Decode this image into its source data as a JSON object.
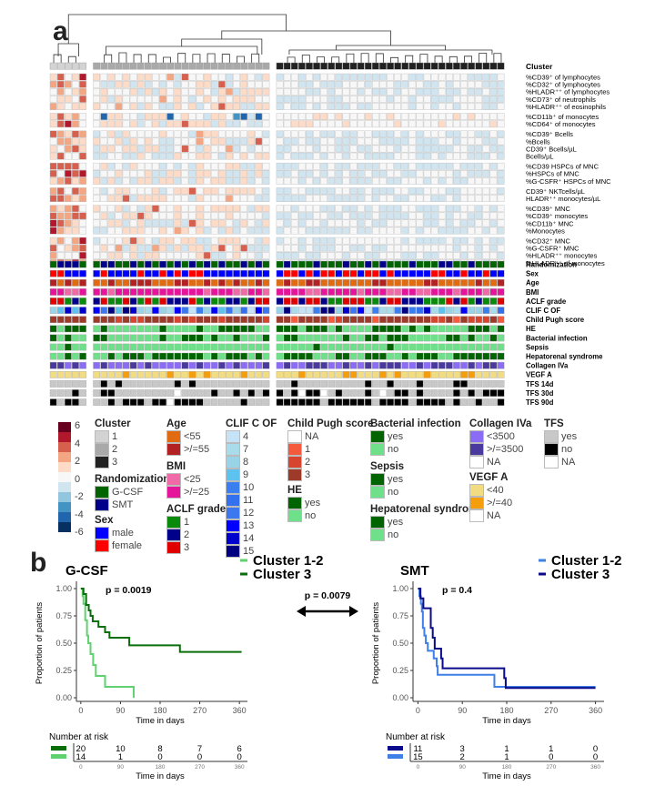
{
  "panel_a": {
    "letter": "a",
    "cluster_label": "Cluster",
    "clusters": [
      {
        "id": 1,
        "n_columns": 5,
        "color": "#d3d3d3"
      },
      {
        "id": 2,
        "n_columns": 24,
        "color": "#a9a9a9"
      },
      {
        "id": 3,
        "n_columns": 31,
        "color": "#222222"
      }
    ],
    "row_groups": [
      [
        "%CD39⁺ of lymphocytes",
        "%CD32⁺ of lymphocytes",
        "%HLADR⁺⁺ of lymphocytes",
        "%CD73⁺ of neutrophils",
        "%HLADR⁺⁺ of eosinophils"
      ],
      [
        "%CD11b⁺ of monocytes",
        "%CD64⁺ of monocytes"
      ],
      [
        "%CD39⁺ Bcells",
        "%Bcells",
        "CD39⁺ Bcells/µL",
        "Bcells/µL"
      ],
      [
        "%CD39 HSPCs of MNC",
        "%HSPCs of MNC",
        "%G-CSFR⁺ HSPCs of MNC"
      ],
      [
        "CD39⁺ NKTcells/µL",
        "HLADR⁺⁺ monocytes/µL"
      ],
      [
        "%CD39⁺ MNC",
        "%CD39⁺ monocytes",
        "%CD11b⁺ MNC",
        "%Monocytes"
      ],
      [
        "%CD32⁺ MNC",
        "%G-CSFR⁺ MNC",
        "%HLADR⁺⁺ monocytes",
        "%HLADR⁺⁺ of monocytes"
      ]
    ],
    "annotation_rows": [
      "Randomization",
      "Sex",
      "Age",
      "BMI",
      "ACLF grade",
      "CLIF C OF",
      "Child Pugh score",
      "HE",
      "Bacterial infection",
      "Sepsis",
      "Hepatorenal syndrome",
      "Collagen IVa",
      "VEGF A",
      "TFS 14d",
      "TFS 30d",
      "TFS 90d"
    ],
    "colorbar": {
      "ticks": [
        "6",
        "4",
        "2",
        "0",
        "-2",
        "-4",
        "-6"
      ],
      "colors": [
        "#67001f",
        "#b2182b",
        "#d6604d",
        "#f4a582",
        "#fddbc7",
        "#f7f7f7",
        "#d1e5f0",
        "#92c5de",
        "#4393c3",
        "#2166ac",
        "#053061"
      ]
    },
    "legends": {
      "cluster": {
        "title": "Cluster",
        "items": [
          {
            "label": "1",
            "color": "#d3d3d3"
          },
          {
            "label": "2",
            "color": "#a9a9a9"
          },
          {
            "label": "3",
            "color": "#222222"
          }
        ]
      },
      "randomization": {
        "title": "Randomization",
        "items": [
          {
            "label": "G-CSF",
            "color": "#006400"
          },
          {
            "label": "SMT",
            "color": "#00008b"
          }
        ]
      },
      "sex": {
        "title": "Sex",
        "items": [
          {
            "label": "male",
            "color": "#0000ff"
          },
          {
            "label": "female",
            "color": "#ff0000"
          }
        ]
      },
      "age": {
        "title": "Age",
        "items": [
          {
            "label": "<55",
            "color": "#e06b10"
          },
          {
            "label": ">/=55",
            "color": "#b22222"
          }
        ]
      },
      "bmi": {
        "title": "BMI",
        "items": [
          {
            "label": "<25",
            "color": "#f06aa8"
          },
          {
            "label": ">/=25",
            "color": "#e6149b"
          }
        ]
      },
      "aclf": {
        "title": "ACLF grade",
        "items": [
          {
            "label": "1",
            "color": "#0a8a0a"
          },
          {
            "label": "2",
            "color": "#00008b"
          },
          {
            "label": "3",
            "color": "#e00000"
          }
        ]
      },
      "clif": {
        "title": "CLIF C OF",
        "items": [
          {
            "label": "4",
            "color": "#c6e2f7"
          },
          {
            "label": "7",
            "color": "#a8dcea"
          },
          {
            "label": "8",
            "color": "#99d3e8"
          },
          {
            "label": "9",
            "color": "#5ec2ee"
          },
          {
            "label": "10",
            "color": "#3a7ff0"
          },
          {
            "label": "11",
            "color": "#3370ee"
          },
          {
            "label": "12",
            "color": "#3b78f0"
          },
          {
            "label": "13",
            "color": "#0000ff"
          },
          {
            "label": "14",
            "color": "#0000cc"
          },
          {
            "label": "15",
            "color": "#000080"
          }
        ]
      },
      "child_pugh": {
        "title": "Child Pugh score",
        "items": [
          {
            "label": "NA",
            "color": "#ffffff"
          },
          {
            "label": "1",
            "color": "#f55a3c"
          },
          {
            "label": "2",
            "color": "#d8452e"
          },
          {
            "label": "3",
            "color": "#9e3a2a"
          }
        ]
      },
      "he": {
        "title": "HE",
        "items": [
          {
            "label": "yes",
            "color": "#006400"
          },
          {
            "label": "no",
            "color": "#6fe08a"
          }
        ]
      },
      "bacterial": {
        "title": "Bacterial infection",
        "items": [
          {
            "label": "yes",
            "color": "#006400"
          },
          {
            "label": "no",
            "color": "#6fe08a"
          }
        ]
      },
      "sepsis": {
        "title": "Sepsis",
        "items": [
          {
            "label": "yes",
            "color": "#006400"
          },
          {
            "label": "no",
            "color": "#6fe08a"
          }
        ]
      },
      "hrs": {
        "title": "Hepatorenal syndrome",
        "items": [
          {
            "label": "yes",
            "color": "#006400"
          },
          {
            "label": "no",
            "color": "#6fe08a"
          }
        ]
      },
      "collagen": {
        "title": "Collagen IVa",
        "items": [
          {
            "label": "<3500",
            "color": "#8a6cf5"
          },
          {
            "label": ">/=3500",
            "color": "#4b3a9e"
          },
          {
            "label": "NA",
            "color": "#ffffff"
          }
        ]
      },
      "vegf": {
        "title": "VEGF A",
        "items": [
          {
            "label": "<40",
            "color": "#f2dc82"
          },
          {
            "label": ">/=40",
            "color": "#f59e0b"
          },
          {
            "label": "NA",
            "color": "#ffffff"
          }
        ]
      },
      "tfs": {
        "title": "TFS",
        "items": [
          {
            "label": "yes",
            "color": "#c8c8c8"
          },
          {
            "label": "no",
            "color": "#000000"
          },
          {
            "label": "NA",
            "color": "#ffffff"
          }
        ]
      }
    }
  },
  "panel_b": {
    "letter": "b",
    "between_p": "p = 0.0079",
    "chart_data": [
      {
        "type": "line",
        "subtype": "kaplan-meier",
        "title": "G-CSF",
        "pvalue": "p = 0.0019",
        "xlabel": "Time in days",
        "ylabel": "Proportion of patients",
        "xticks": [
          0,
          90,
          180,
          270,
          360
        ],
        "yticks": [
          "0.00",
          "0.25",
          "0.50",
          "0.75",
          "1.00"
        ],
        "xlim": [
          -10,
          370
        ],
        "ylim": [
          0,
          1
        ],
        "series": [
          {
            "name": "Cluster 1-2",
            "color": "#5fd16f",
            "steps": [
              [
                0,
                1.0
              ],
              [
                4,
                0.93
              ],
              [
                6,
                0.86
              ],
              [
                10,
                0.71
              ],
              [
                14,
                0.57
              ],
              [
                17,
                0.5
              ],
              [
                22,
                0.4
              ],
              [
                28,
                0.3
              ],
              [
                34,
                0.2
              ],
              [
                55,
                0.1
              ],
              [
                120,
                0.0
              ]
            ]
          },
          {
            "name": "Cluster 3",
            "color": "#0a6e0a",
            "steps": [
              [
                0,
                1.0
              ],
              [
                6,
                0.95
              ],
              [
                12,
                0.85
              ],
              [
                18,
                0.8
              ],
              [
                22,
                0.75
              ],
              [
                27,
                0.7
              ],
              [
                40,
                0.65
              ],
              [
                55,
                0.6
              ],
              [
                65,
                0.55
              ],
              [
                100,
                0.55
              ],
              [
                110,
                0.48
              ],
              [
                225,
                0.42
              ],
              [
                365,
                0.42
              ]
            ]
          }
        ],
        "risk_table": {
          "title": "Number at risk",
          "times": [
            0,
            90,
            180,
            270,
            360
          ],
          "rows": [
            {
              "series": "Cluster 3",
              "color": "#0a6e0a",
              "values": [
                20,
                10,
                8,
                7,
                6
              ]
            },
            {
              "series": "Cluster 1-2",
              "color": "#5fd16f",
              "values": [
                14,
                1,
                0,
                0,
                0
              ]
            }
          ],
          "xlabel": "Time in days"
        }
      },
      {
        "type": "line",
        "subtype": "kaplan-meier",
        "title": "SMT",
        "pvalue": "p = 0.4",
        "xlabel": "Time in days",
        "ylabel": "Proportion of patients",
        "xticks": [
          0,
          90,
          180,
          270,
          360
        ],
        "yticks": [
          "0.00",
          "0.25",
          "0.50",
          "0.75",
          "1.00"
        ],
        "xlim": [
          -10,
          370
        ],
        "ylim": [
          0,
          1
        ],
        "series": [
          {
            "name": "Cluster 1-2",
            "color": "#3f7fe6",
            "steps": [
              [
                0,
                1.0
              ],
              [
                3,
                0.93
              ],
              [
                6,
                0.86
              ],
              [
                8,
                0.79
              ],
              [
                10,
                0.64
              ],
              [
                13,
                0.57
              ],
              [
                16,
                0.5
              ],
              [
                20,
                0.43
              ],
              [
                30,
                0.43
              ],
              [
                32,
                0.36
              ],
              [
                38,
                0.29
              ],
              [
                40,
                0.21
              ],
              [
                152,
                0.21
              ],
              [
                155,
                0.1
              ],
              [
                360,
                0.1
              ]
            ]
          },
          {
            "name": "Cluster 3",
            "color": "#0a0a8a",
            "steps": [
              [
                0,
                1.0
              ],
              [
                5,
                0.91
              ],
              [
                11,
                0.82
              ],
              [
                24,
                0.82
              ],
              [
                26,
                0.64
              ],
              [
                30,
                0.55
              ],
              [
                34,
                0.45
              ],
              [
                45,
                0.45
              ],
              [
                47,
                0.36
              ],
              [
                50,
                0.27
              ],
              [
                172,
                0.27
              ],
              [
                175,
                0.18
              ],
              [
                178,
                0.09
              ],
              [
                360,
                0.09
              ]
            ]
          }
        ],
        "risk_table": {
          "title": "Number at risk",
          "times": [
            0,
            90,
            180,
            270,
            360
          ],
          "rows": [
            {
              "series": "Cluster 3",
              "color": "#0a0a8a",
              "values": [
                11,
                3,
                1,
                1,
                0
              ]
            },
            {
              "series": "Cluster 1-2",
              "color": "#3f7fe6",
              "values": [
                15,
                2,
                1,
                0,
                0
              ]
            }
          ],
          "xlabel": "Time in days"
        }
      }
    ]
  }
}
